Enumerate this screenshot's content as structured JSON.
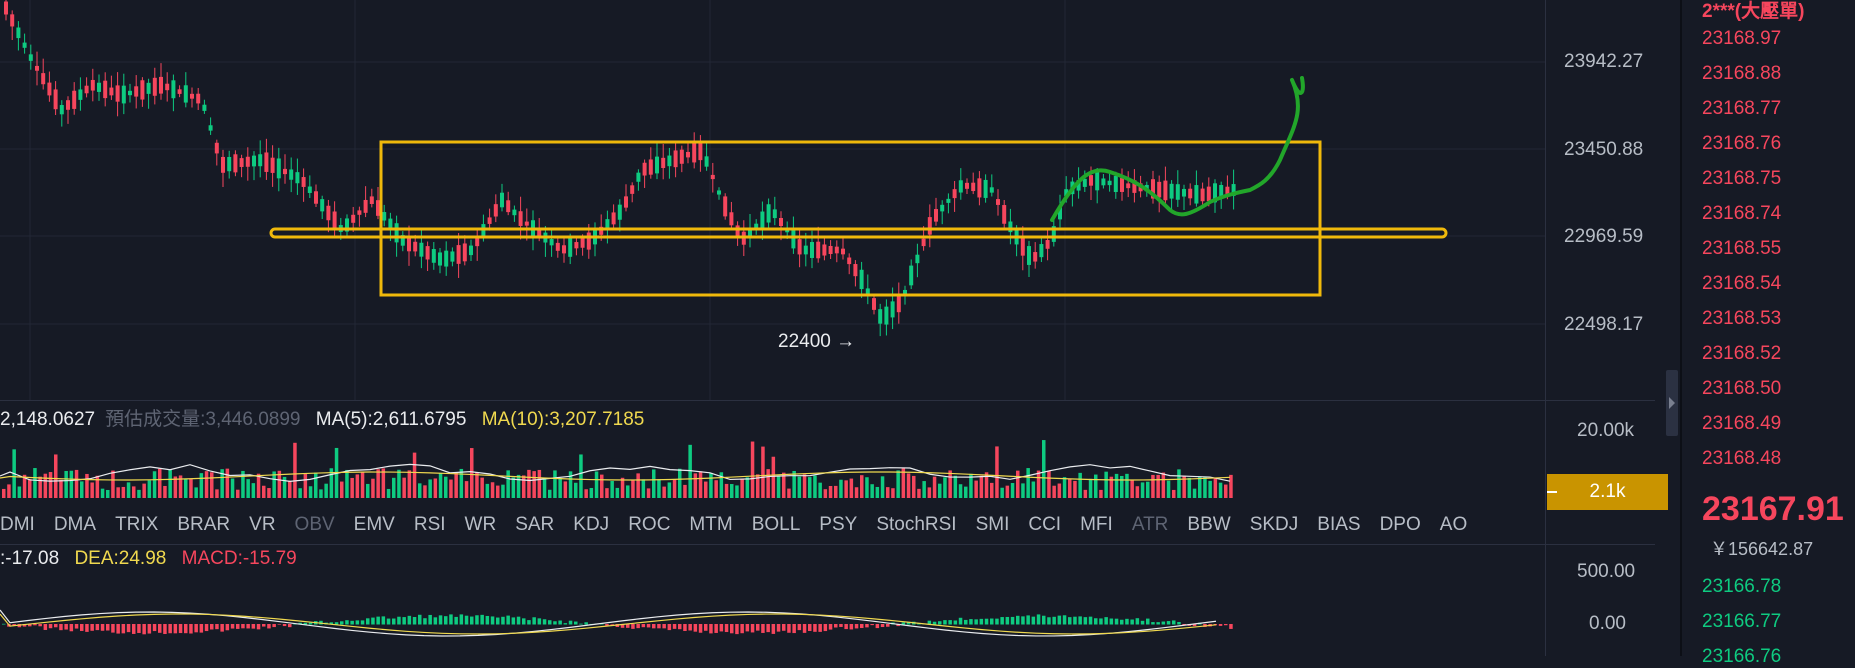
{
  "main_axis": {
    "ticks": [
      "23942.27",
      "23450.88",
      "22969.59",
      "22498.17"
    ]
  },
  "annotation": {
    "low_label": "22400 →"
  },
  "volume_panel": {
    "vol": "2,148.0627",
    "est_label": "預估成交量:",
    "est_value": "3,446.0899",
    "ma5": "MA(5):2,611.6795",
    "ma10": "MA(10):3,207.7185",
    "axis_tick": "20.00k",
    "current_badge": "2.1k"
  },
  "indicator_tabs": [
    {
      "label": "DMI",
      "enabled": true
    },
    {
      "label": "DMA",
      "enabled": true
    },
    {
      "label": "TRIX",
      "enabled": true
    },
    {
      "label": "BRAR",
      "enabled": true
    },
    {
      "label": "VR",
      "enabled": true
    },
    {
      "label": "OBV",
      "enabled": false
    },
    {
      "label": "EMV",
      "enabled": true
    },
    {
      "label": "RSI",
      "enabled": true
    },
    {
      "label": "WR",
      "enabled": true
    },
    {
      "label": "SAR",
      "enabled": true
    },
    {
      "label": "KDJ",
      "enabled": true
    },
    {
      "label": "ROC",
      "enabled": true
    },
    {
      "label": "MTM",
      "enabled": true
    },
    {
      "label": "BOLL",
      "enabled": true
    },
    {
      "label": "PSY",
      "enabled": true
    },
    {
      "label": "StochRSI",
      "enabled": true
    },
    {
      "label": "SMI",
      "enabled": true
    },
    {
      "label": "CCI",
      "enabled": true
    },
    {
      "label": "MFI",
      "enabled": true
    },
    {
      "label": "ATR",
      "enabled": false
    },
    {
      "label": "BBW",
      "enabled": true
    },
    {
      "label": "SKDJ",
      "enabled": true
    },
    {
      "label": "BIAS",
      "enabled": true
    },
    {
      "label": "DPO",
      "enabled": true
    },
    {
      "label": "AO",
      "enabled": true
    }
  ],
  "macd_panel": {
    "dif": ":-17.08",
    "dea": "DEA:24.98",
    "macd": "MACD:-15.79",
    "ticks": [
      "500.00",
      "0.00"
    ]
  },
  "orderbook": {
    "header": "2***(大壓單)",
    "asks": [
      "23168.97",
      "23168.88",
      "23168.77",
      "23168.76",
      "23168.75",
      "23168.74",
      "23168.55",
      "23168.54",
      "23168.53",
      "23168.52",
      "23168.50",
      "23168.49",
      "23168.48"
    ],
    "last_price": "23167.91",
    "fiat_value": "￥156642.87",
    "bids": [
      "23166.78",
      "23166.77",
      "23166.76"
    ]
  },
  "colors": {
    "up": "#0ecb81",
    "down": "#f6465d",
    "box": "#f0b90b",
    "trend": "#22a62a",
    "ma10": "#f0d94f"
  }
}
